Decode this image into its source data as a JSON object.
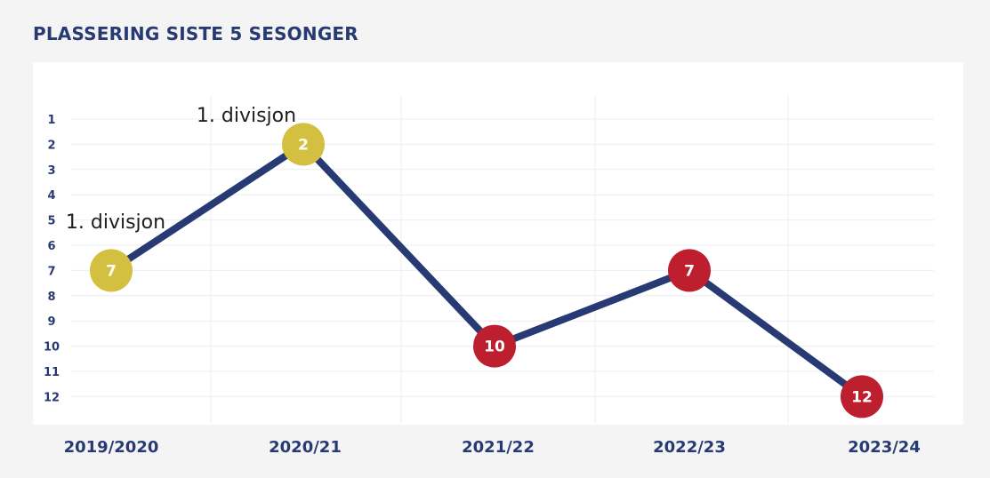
{
  "chart_data": {
    "type": "line",
    "title": "PLASSERING SISTE 5 SESONGER",
    "categories": [
      "2019/2020",
      "2020/21",
      "2021/22",
      "2022/23",
      "2023/24"
    ],
    "series": [
      {
        "values": [
          7,
          2,
          10,
          7,
          12
        ]
      }
    ],
    "point_labels": [
      "7",
      "2",
      "10",
      "7",
      "12"
    ],
    "point_colors": [
      "#d4c040",
      "#d4c040",
      "#bd1f2e",
      "#bd1f2e",
      "#bd1f2e"
    ],
    "annotations": [
      {
        "category": "2019/2020",
        "text": "1. divisjon"
      },
      {
        "category": "2020/21",
        "text": "1. divisjon"
      }
    ],
    "y_ticks": [
      "1",
      "2",
      "3",
      "4",
      "5",
      "6",
      "7",
      "8",
      "9",
      "10",
      "11",
      "12"
    ],
    "ylim": [
      1,
      12
    ],
    "y_reversed": true,
    "grid": true,
    "colors": {
      "line": "#283a73",
      "text": "#283a73",
      "promoted": "#d4c040",
      "regular": "#bd1f2e",
      "panel": "#ffffff",
      "background": "#f4f4f4"
    }
  }
}
